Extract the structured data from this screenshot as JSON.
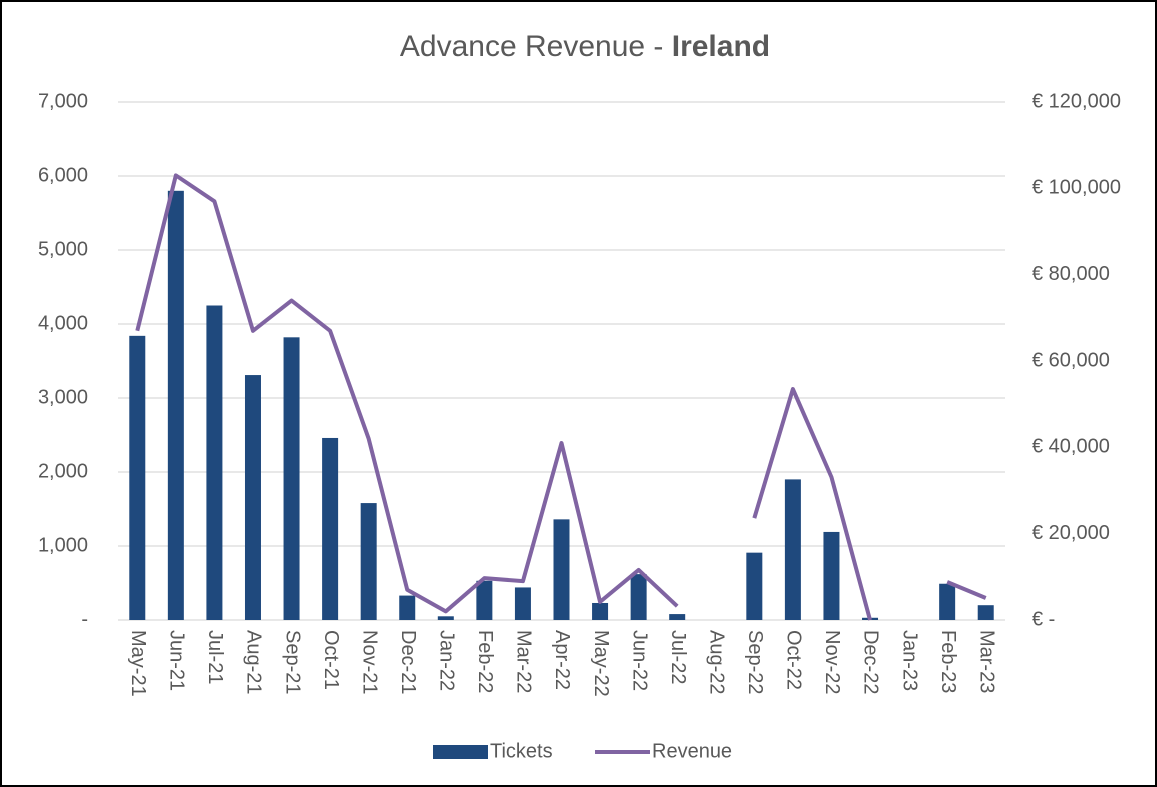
{
  "chart_data": {
    "type": "bar_line",
    "title": "Advance Revenue -",
    "title_bold": "Ireland",
    "categories": [
      "May-21",
      "Jun-21",
      "Jul-21",
      "Aug-21",
      "Sep-21",
      "Oct-21",
      "Nov-21",
      "Dec-21",
      "Jan-22",
      "Feb-22",
      "Mar-22",
      "Apr-22",
      "May-22",
      "Jun-22",
      "Jul-22",
      "Aug-22",
      "Sep-22",
      "Oct-22",
      "Nov-22",
      "Dec-22",
      "Jan-23",
      "Feb-23",
      "Mar-23"
    ],
    "series": [
      {
        "name": "Tickets",
        "type": "bar",
        "color": "#1f497d",
        "values": [
          3840,
          5800,
          4250,
          3310,
          3820,
          2460,
          1580,
          330,
          50,
          530,
          440,
          1360,
          230,
          620,
          80,
          null,
          910,
          1900,
          1190,
          30,
          null,
          490,
          200
        ]
      },
      {
        "name": "Revenue",
        "type": "line",
        "axis": "y2",
        "color": "#8064a2",
        "values": [
          67000,
          103000,
          97000,
          67000,
          74000,
          67000,
          42000,
          7000,
          2000,
          9700,
          9000,
          41000,
          4200,
          11600,
          3200,
          null,
          23600,
          53500,
          33100,
          0,
          null,
          8800,
          5100
        ]
      }
    ],
    "ylim": [
      0,
      7000
    ],
    "yticks": [
      {
        "value": 0,
        "label": "-"
      },
      {
        "value": 1000,
        "label": "1,000"
      },
      {
        "value": 2000,
        "label": "2,000"
      },
      {
        "value": 3000,
        "label": "3,000"
      },
      {
        "value": 4000,
        "label": "4,000"
      },
      {
        "value": 5000,
        "label": "5,000"
      },
      {
        "value": 6000,
        "label": "6,000"
      },
      {
        "value": 7000,
        "label": "7,000"
      }
    ],
    "y2lim": [
      0,
      120000
    ],
    "y2ticks": [
      {
        "value": 0,
        "label": "€ -"
      },
      {
        "value": 20000,
        "label": "€ 20,000"
      },
      {
        "value": 40000,
        "label": "€ 40,000"
      },
      {
        "value": 60000,
        "label": "€ 60,000"
      },
      {
        "value": 80000,
        "label": "€ 80,000"
      },
      {
        "value": 100000,
        "label": "€ 100,000"
      },
      {
        "value": 120000,
        "label": "€ 120,000"
      }
    ],
    "grid": true,
    "legend": "bottom"
  }
}
